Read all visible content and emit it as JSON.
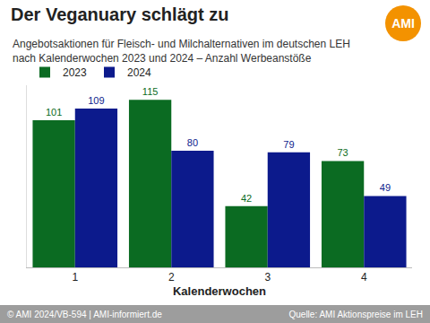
{
  "chart_data": {
    "type": "bar",
    "title": "Der Veganuary schlägt zu",
    "subtitle": [
      "Angebotsaktionen für Fleisch- und Milchalternativen im deutschen LEH",
      "nach Kalenderwochen 2023 und 2024 – Anzahl Werbeanstöße"
    ],
    "x_label": "Kalenderwochen",
    "categories": [
      "1",
      "2",
      "3",
      "4"
    ],
    "series": [
      {
        "name": "2023",
        "color": "#0b6b22",
        "values": [
          101,
          115,
          42,
          73
        ]
      },
      {
        "name": "2024",
        "color": "#0c1a8c",
        "values": [
          109,
          80,
          79,
          49
        ]
      }
    ],
    "ylim": [
      0,
      125
    ],
    "yticks": [],
    "tick_labels": "x",
    "data_labels": true,
    "legend": "top left",
    "grid": false
  },
  "logo": "AMI",
  "footer": {
    "left": "© AMI 2024/VB-594 | AMI-informiert.de",
    "right": "Quelle: AMI Aktionspreise im LEH"
  }
}
